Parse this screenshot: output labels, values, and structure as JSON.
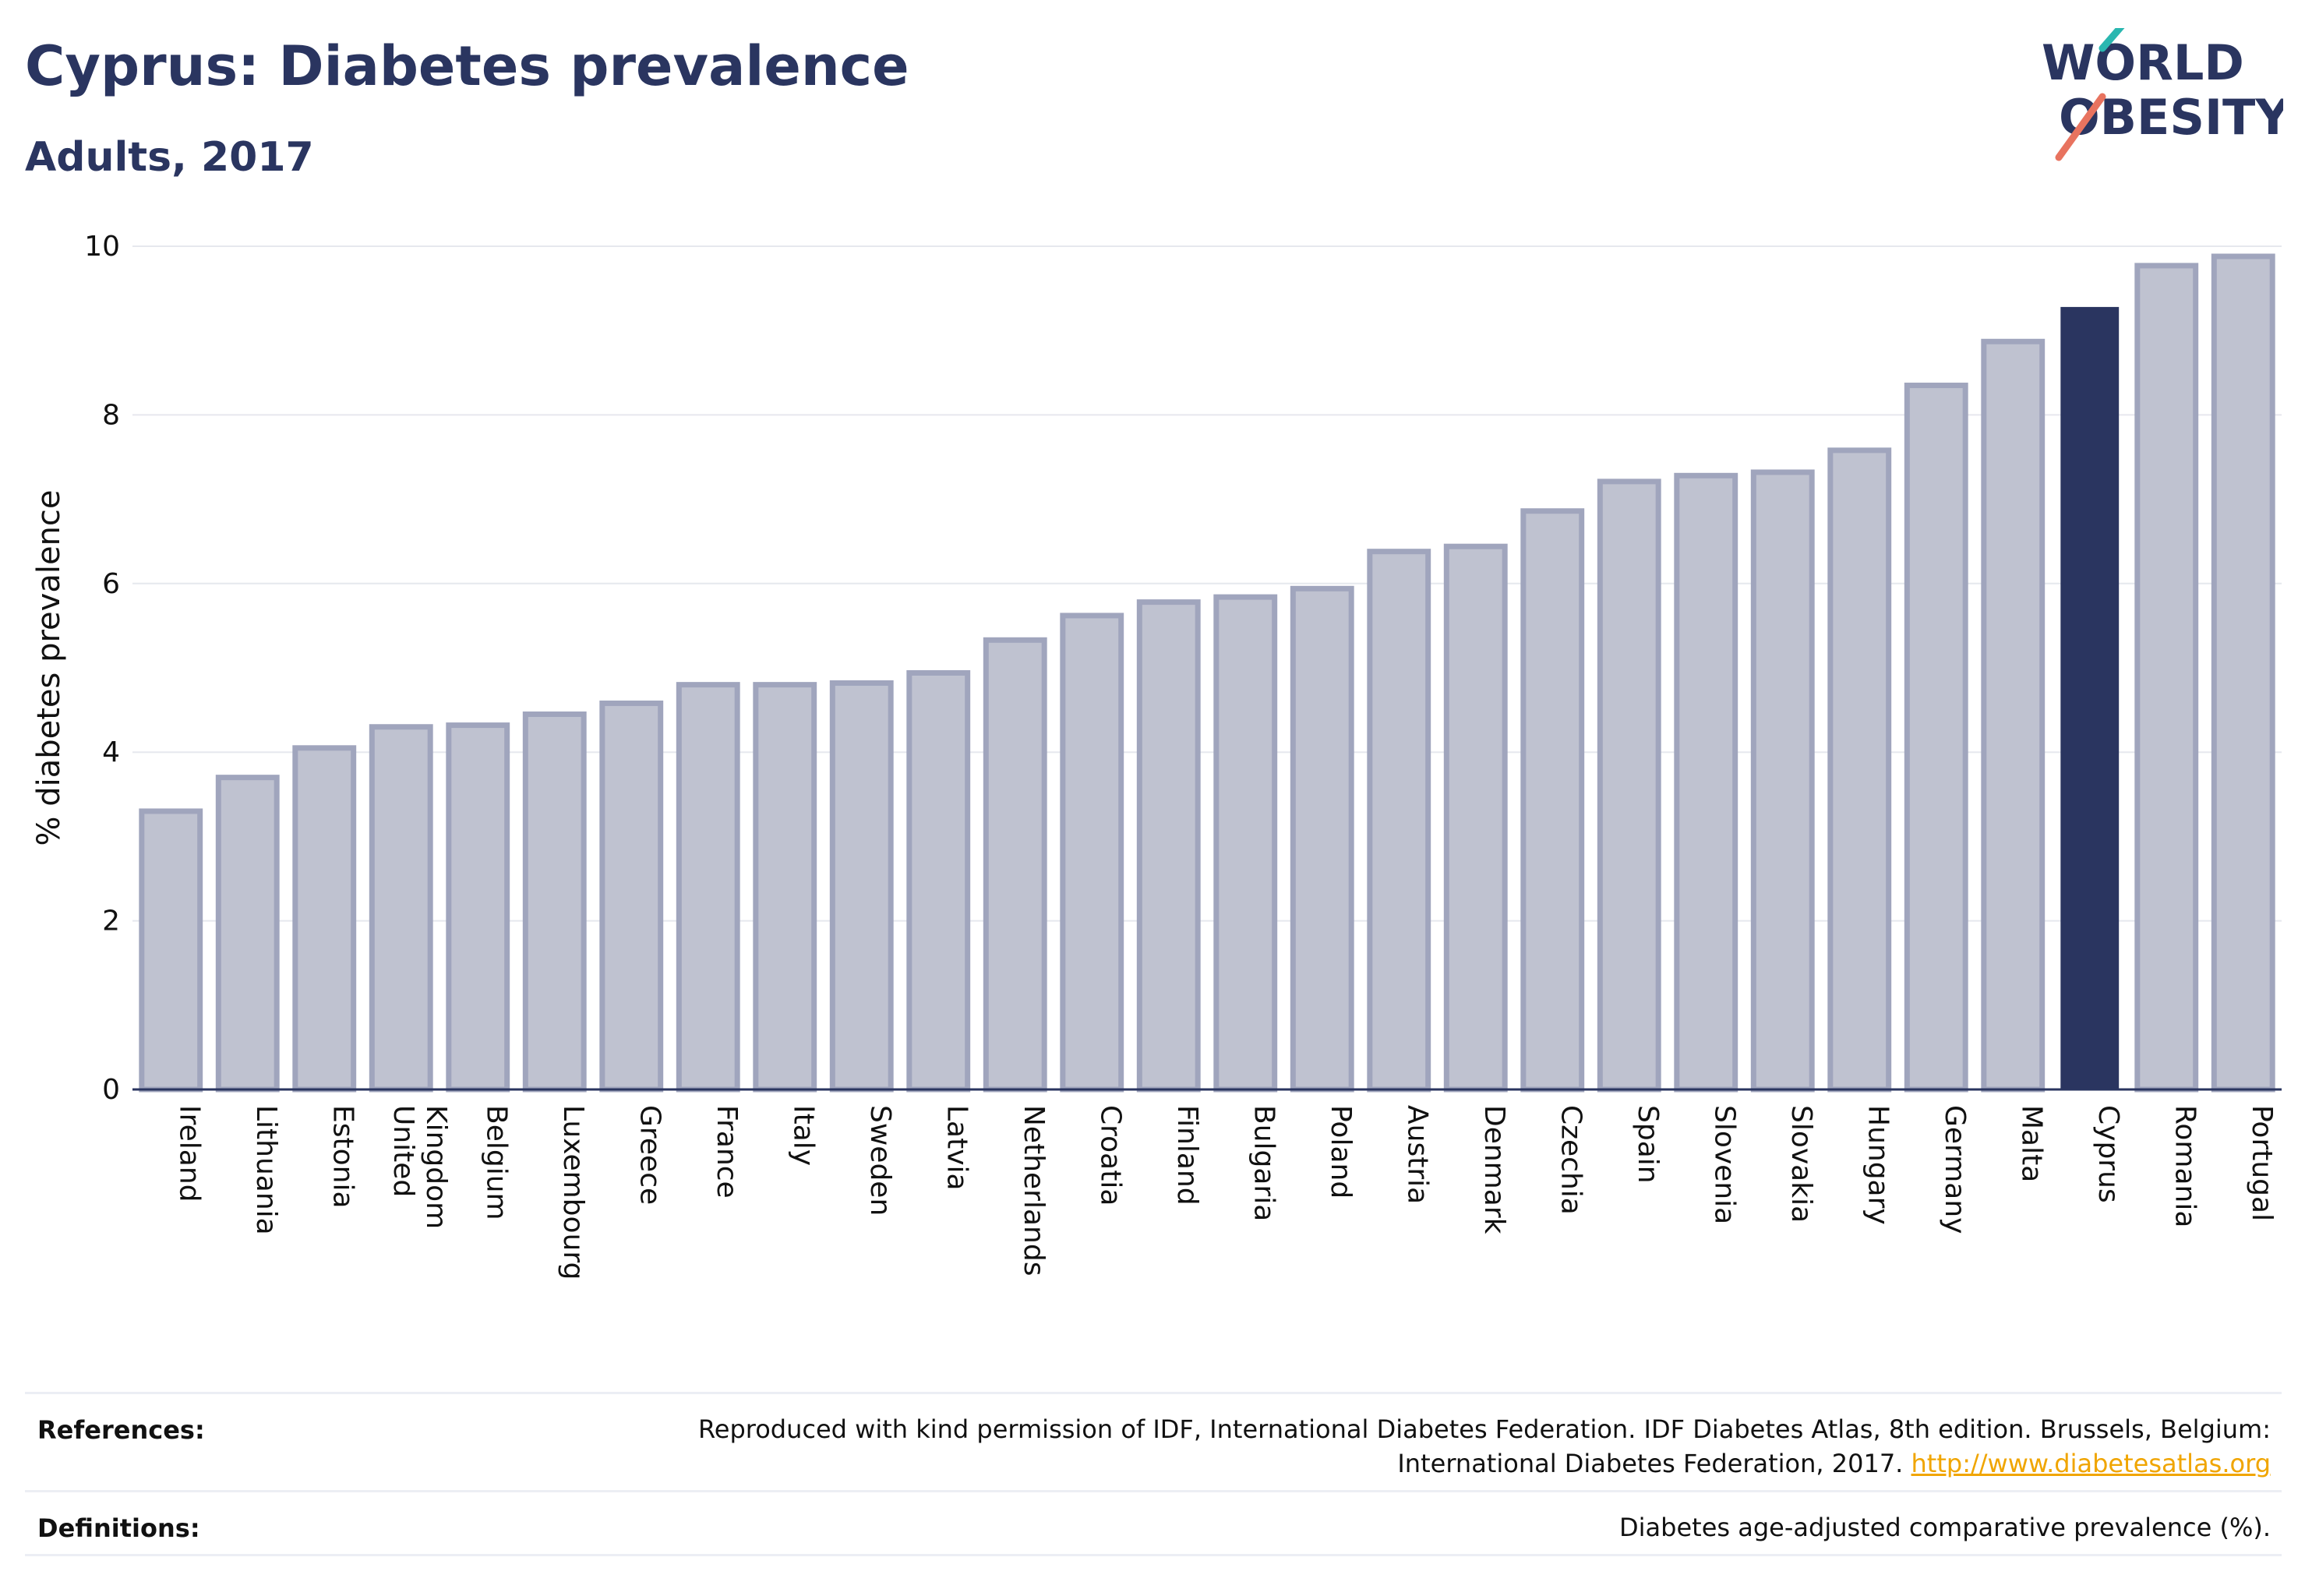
{
  "header": {
    "title": "Cyprus: Diabetes prevalence",
    "subtitle": "Adults, 2017"
  },
  "logo": {
    "line1": "WORLD",
    "line2": "OBESITY",
    "colors": {
      "text": "#2a3560",
      "accent_teal": "#2ab7b0",
      "accent_coral": "#e8735f"
    }
  },
  "chart_data": {
    "type": "bar",
    "title": "",
    "xlabel": "",
    "ylabel": "% diabetes prevalence",
    "ylim": [
      0,
      10
    ],
    "yticks": [
      0,
      2,
      4,
      6,
      8,
      10
    ],
    "grid": true,
    "categories": [
      "Ireland",
      "Lithuania",
      "Estonia",
      "United Kingdom",
      "Belgium",
      "Luxembourg",
      "Greece",
      "France",
      "Italy",
      "Sweden",
      "Latvia",
      "Netherlands",
      "Croatia",
      "Finland",
      "Bulgaria",
      "Poland",
      "Austria",
      "Denmark",
      "Czechia",
      "Spain",
      "Slovenia",
      "Slovakia",
      "Hungary",
      "Germany",
      "Malta",
      "Cyprus",
      "Romania",
      "Portugal"
    ],
    "values": [
      3.3,
      3.7,
      4.05,
      4.3,
      4.32,
      4.45,
      4.58,
      4.8,
      4.8,
      4.82,
      4.94,
      5.33,
      5.62,
      5.78,
      5.84,
      5.94,
      6.38,
      6.44,
      6.86,
      7.21,
      7.28,
      7.32,
      7.58,
      8.35,
      8.87,
      9.28,
      9.77,
      9.88
    ],
    "highlight": "Cyprus",
    "colors": {
      "bar": "#bfc2d0",
      "bar_border": "#a0a5bd",
      "highlight": "#2a3560",
      "grid": "#e6e8ee",
      "axis": "#2a3560"
    }
  },
  "footer": {
    "references_label": "References:",
    "references_text": "Reproduced with kind permission of IDF, International Diabetes Federation. IDF Diabetes Atlas, 8th edition. Brussels, Belgium:",
    "references_text2": "International Diabetes Federation, 2017.",
    "references_link": "http://www.diabetesatlas.org",
    "definitions_label": "Definitions:",
    "definitions_text": "Diabetes age-adjusted comparative prevalence (%)."
  }
}
